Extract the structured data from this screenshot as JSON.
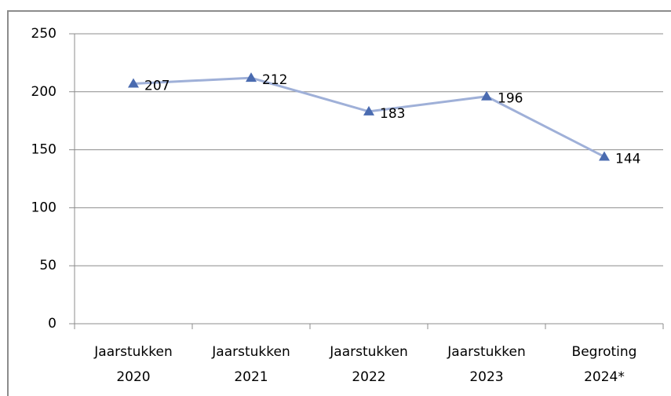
{
  "chart_data": {
    "type": "line",
    "categories": [
      "Jaarstukken 2020",
      "Jaarstukken 2021",
      "Jaarstukken 2022",
      "Jaarstukken 2023",
      "Begroting 2024*"
    ],
    "series": [
      {
        "name": null,
        "line_color": "#9fb0d8",
        "color": "#4a6bb0",
        "values": [
          207,
          212,
          183,
          196,
          144
        ]
      }
    ],
    "ylim": [
      0,
      250
    ],
    "yticks": [
      0,
      50,
      100,
      150,
      200,
      250
    ],
    "grid": true
  }
}
